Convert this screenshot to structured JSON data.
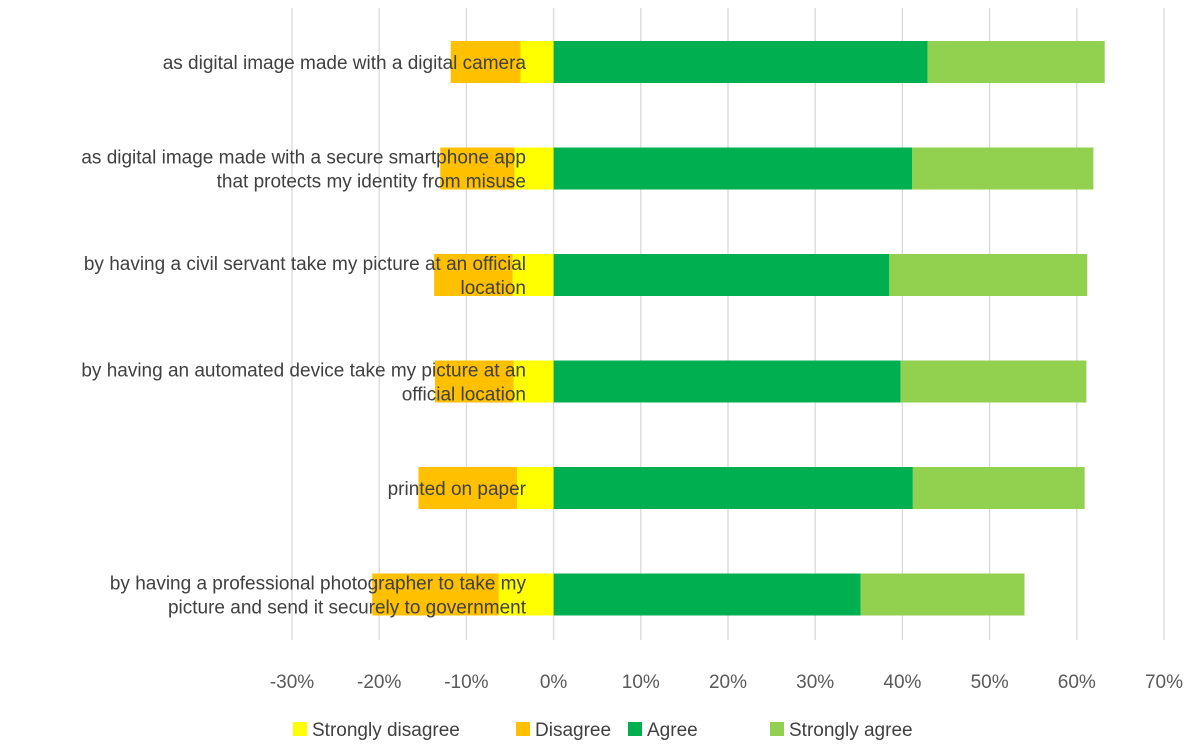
{
  "chart_data": {
    "type": "bar",
    "orientation": "horizontal",
    "stacked": true,
    "diverging": true,
    "categories": [
      [
        "as digital image made with a digital camera"
      ],
      [
        "as digital image made with a secure smartphone app",
        "that protects my identity from misuse"
      ],
      [
        "by having a civil servant take my picture at an official",
        "location"
      ],
      [
        "by having an automated device take my picture at an",
        "official location"
      ],
      [
        "printed on paper"
      ],
      [
        "by having a professional photographer to take my",
        "picture and send it securely to government"
      ]
    ],
    "series": [
      {
        "name": "Strongly disagree",
        "color": "#FFFF00",
        "values": [
          -3.8,
          -4.5,
          -4.7,
          -4.6,
          -4.2,
          -6.3
        ]
      },
      {
        "name": "Disagree",
        "color": "#FFC000",
        "values": [
          -8.0,
          -8.5,
          -9.0,
          -9.0,
          -11.3,
          -14.5
        ]
      },
      {
        "name": "Agree",
        "color": "#00B050",
        "values": [
          42.9,
          41.1,
          38.5,
          39.8,
          41.2,
          35.2
        ]
      },
      {
        "name": "Strongly agree",
        "color": "#92D050",
        "values": [
          20.3,
          20.8,
          22.7,
          21.3,
          19.7,
          18.8
        ]
      }
    ],
    "xlim": [
      -30,
      70
    ],
    "xticks": [
      -30,
      -20,
      -10,
      0,
      10,
      20,
      30,
      40,
      50,
      60,
      70
    ],
    "tick_format": "percent",
    "grid": "vertical",
    "legend_position": "bottom",
    "title": "",
    "xlabel": "",
    "ylabel": ""
  }
}
